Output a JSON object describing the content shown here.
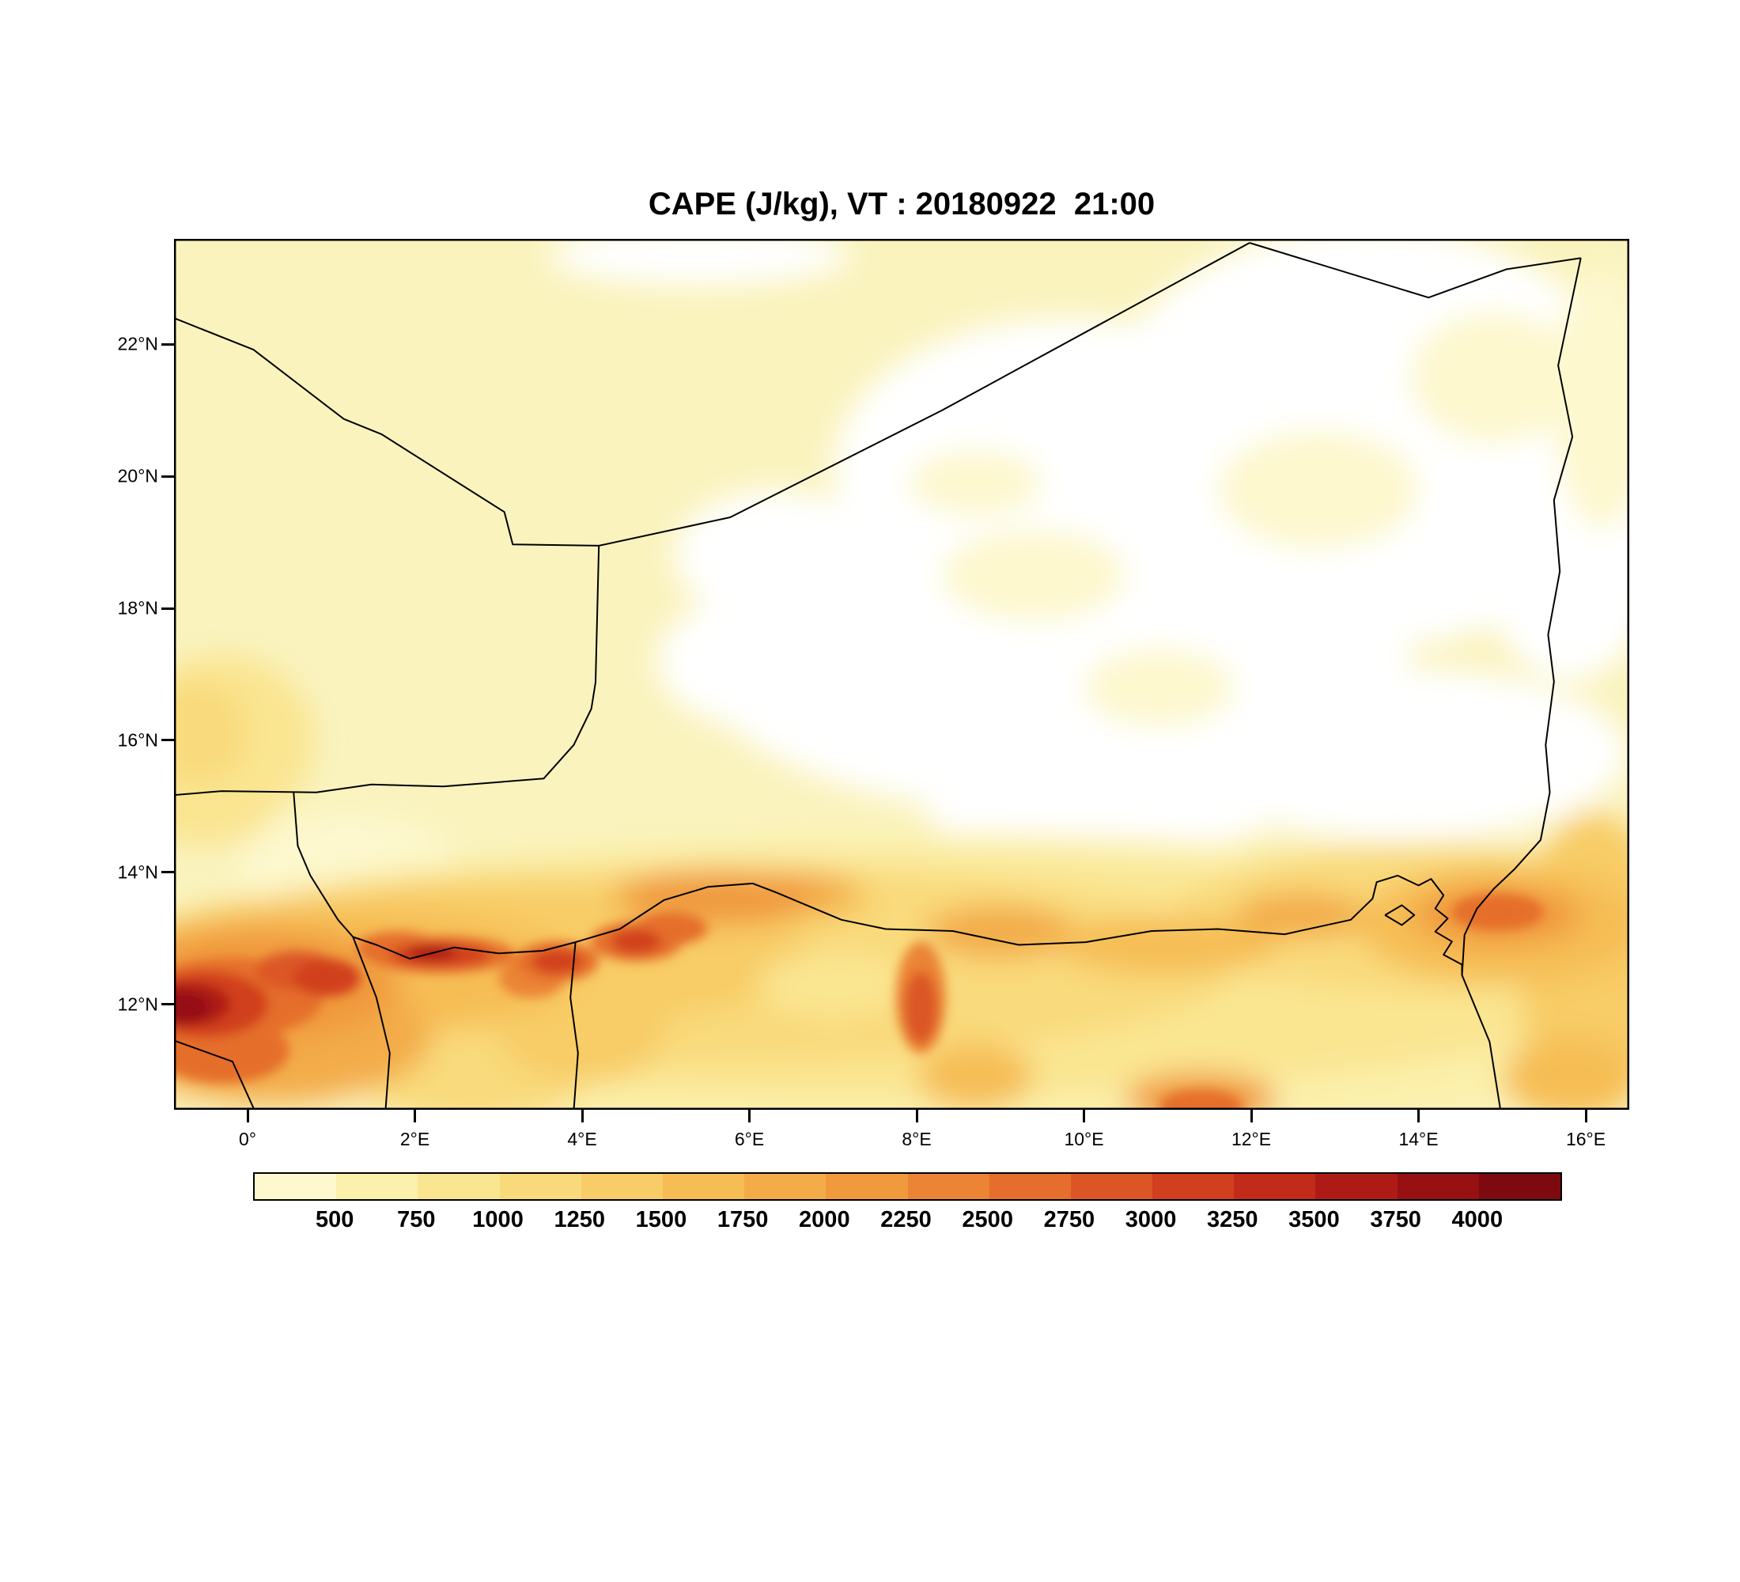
{
  "title": "CAPE (J/kg), VT : 20180922  21:00",
  "chart_data": {
    "type": "heatmap",
    "title": "CAPE (J/kg), VT : 20180922  21:00",
    "variable": "CAPE",
    "units": "J/kg",
    "valid_time_label": "VT : 20180922  21:00",
    "base_color": "#FAF3BE",
    "x_axis": {
      "kind": "longitude",
      "min": -0.88,
      "max": 16.52,
      "ticks": [
        {
          "value": 0,
          "label": "0°"
        },
        {
          "value": 2,
          "label": "2°E"
        },
        {
          "value": 4,
          "label": "4°E"
        },
        {
          "value": 6,
          "label": "6°E"
        },
        {
          "value": 8,
          "label": "8°E"
        },
        {
          "value": 10,
          "label": "10°E"
        },
        {
          "value": 12,
          "label": "12°E"
        },
        {
          "value": 14,
          "label": "14°E"
        },
        {
          "value": 16,
          "label": "16°E"
        }
      ]
    },
    "y_axis": {
      "kind": "latitude",
      "min": 10.4,
      "max": 23.6,
      "ticks": [
        {
          "value": 22,
          "label": "22°N"
        },
        {
          "value": 20,
          "label": "20°N"
        },
        {
          "value": 18,
          "label": "18°N"
        },
        {
          "value": 16,
          "label": "16°N"
        },
        {
          "value": 14,
          "label": "14°N"
        },
        {
          "value": 12,
          "label": "12°N"
        }
      ]
    },
    "colorbar": {
      "levels": [
        500,
        750,
        1000,
        1250,
        1500,
        1750,
        2000,
        2250,
        2500,
        2750,
        3000,
        3250,
        3500,
        3750,
        4000
      ],
      "colors": [
        "#FDF8CE",
        "#FBF0AC",
        "#FAE591",
        "#F9DA7B",
        "#F8CC66",
        "#F6BD55",
        "#F3AC48",
        "#F0993D",
        "#EB8434",
        "#E56E2C",
        "#DC5625",
        "#D13F1F",
        "#C22B1A",
        "#AE1B16",
        "#971012",
        "#7C0A0F"
      ],
      "missing_color": "#FFFFFF"
    },
    "features": [
      {
        "lon": 9.8,
        "lat": 20.1,
        "rx": 2.8,
        "ry": 2.3,
        "value": 0
      },
      {
        "lon": 13.4,
        "lat": 20.6,
        "rx": 3.3,
        "ry": 3.2,
        "value": 0
      },
      {
        "lon": 9.6,
        "lat": 17.3,
        "rx": 4.3,
        "ry": 2.4,
        "value": 0
      },
      {
        "lon": 13.8,
        "lat": 15.8,
        "rx": 2.7,
        "ry": 1.3,
        "value": 0
      },
      {
        "lon": 8.3,
        "lat": 16.1,
        "rx": 1.7,
        "ry": 1.0,
        "value": 0
      },
      {
        "lon": 6.3,
        "lat": 18.8,
        "rx": 1.2,
        "ry": 1.0,
        "value": 0
      },
      {
        "lon": 6.1,
        "lat": 17.2,
        "rx": 1.2,
        "ry": 1.0,
        "value": 0
      },
      {
        "lon": 5.4,
        "lat": 23.35,
        "rx": 1.8,
        "ry": 0.45,
        "value": 0
      },
      {
        "lon": 10.2,
        "lat": 14.9,
        "rx": 2.1,
        "ry": 0.6,
        "value": 0
      },
      {
        "lon": 15.8,
        "lat": 19.5,
        "rx": 1.2,
        "ry": 2.6,
        "value": 0
      },
      {
        "lon": 9.4,
        "lat": 18.5,
        "rx": 1.1,
        "ry": 0.7,
        "value": 250
      },
      {
        "lon": 12.8,
        "lat": 19.8,
        "rx": 1.2,
        "ry": 0.9,
        "value": 250
      },
      {
        "lon": 14.9,
        "lat": 21.5,
        "rx": 1.0,
        "ry": 1.0,
        "value": 250
      },
      {
        "lon": 10.9,
        "lat": 16.8,
        "rx": 0.9,
        "ry": 0.6,
        "value": 250
      },
      {
        "lon": 16.2,
        "lat": 21.2,
        "rx": 0.6,
        "ry": 2.0,
        "value": 250
      },
      {
        "lon": 8.7,
        "lat": 19.9,
        "rx": 0.8,
        "ry": 0.5,
        "value": 250
      },
      {
        "lon": 1.2,
        "lat": 14.1,
        "rx": 1.3,
        "ry": 0.8,
        "value": 250
      },
      {
        "lon": -0.3,
        "lat": 16.0,
        "rx": 1.1,
        "ry": 1.3,
        "value": 750
      },
      {
        "lon": -0.6,
        "lat": 16.1,
        "rx": 0.6,
        "ry": 0.8,
        "value": 1000
      },
      {
        "lon": -0.5,
        "lat": 14.9,
        "rx": 0.8,
        "ry": 0.5,
        "value": 750
      },
      {
        "lon": 8.0,
        "lat": 12.2,
        "rx": 9.8,
        "ry": 2.4,
        "value": 500
      },
      {
        "lon": 5.8,
        "lat": 10.5,
        "rx": 1.4,
        "ry": 0.5,
        "value": 500
      },
      {
        "lon": 7.6,
        "lat": 12.4,
        "rx": 9.2,
        "ry": 1.8,
        "value": 750
      },
      {
        "lon": 13.9,
        "lat": 13.3,
        "rx": 2.8,
        "ry": 1.1,
        "value": 1000
      },
      {
        "lon": 5.2,
        "lat": 12.6,
        "rx": 6.6,
        "ry": 1.5,
        "value": 1000
      },
      {
        "lon": 2.7,
        "lat": 11.2,
        "rx": 1.5,
        "ry": 1.0,
        "value": 1000
      },
      {
        "lon": 16.1,
        "lat": 12.6,
        "rx": 0.9,
        "ry": 2.3,
        "value": 1250
      },
      {
        "lon": 2.6,
        "lat": 12.7,
        "rx": 4.2,
        "ry": 1.1,
        "value": 1250
      },
      {
        "lon": 5.8,
        "lat": 13.6,
        "rx": 1.7,
        "ry": 0.5,
        "value": 1250
      },
      {
        "lon": 4.0,
        "lat": 11.6,
        "rx": 1.0,
        "ry": 0.8,
        "value": 1250
      },
      {
        "lon": 7.0,
        "lat": 12.3,
        "rx": 0.9,
        "ry": 0.5,
        "value": 750
      },
      {
        "lon": 15.0,
        "lat": 13.2,
        "rx": 1.7,
        "ry": 0.9,
        "value": 1500
      },
      {
        "lon": 1.2,
        "lat": 12.5,
        "rx": 2.7,
        "ry": 0.95,
        "value": 1500
      },
      {
        "lon": 14.2,
        "lat": 13.1,
        "rx": 0.9,
        "ry": 0.5,
        "value": 1500
      },
      {
        "lon": 11.0,
        "lat": 12.9,
        "rx": 1.3,
        "ry": 0.45,
        "value": 1500
      },
      {
        "lon": 8.7,
        "lat": 10.9,
        "rx": 0.7,
        "ry": 0.5,
        "value": 1500
      },
      {
        "lon": 15.8,
        "lat": 10.9,
        "rx": 0.8,
        "ry": 0.6,
        "value": 1500
      },
      {
        "lon": 9.0,
        "lat": 13.1,
        "rx": 0.9,
        "ry": 0.4,
        "value": 1750
      },
      {
        "lon": 6.6,
        "lat": 13.7,
        "rx": 0.7,
        "ry": 0.3,
        "value": 1750
      },
      {
        "lon": 12.6,
        "lat": 13.35,
        "rx": 0.8,
        "ry": 0.35,
        "value": 1750
      },
      {
        "lon": 0.3,
        "lat": 11.5,
        "rx": 1.9,
        "ry": 1.0,
        "value": 1750
      },
      {
        "lon": 5.6,
        "lat": 13.6,
        "rx": 1.2,
        "ry": 0.4,
        "value": 2000
      },
      {
        "lon": 0.1,
        "lat": 12.3,
        "rx": 1.7,
        "ry": 0.85,
        "value": 2000
      },
      {
        "lon": 14.95,
        "lat": 13.35,
        "rx": 1.0,
        "ry": 0.45,
        "value": 2000
      },
      {
        "lon": 11.4,
        "lat": 10.55,
        "rx": 0.9,
        "ry": 0.4,
        "value": 2000
      },
      {
        "lon": 8.05,
        "lat": 12.1,
        "rx": 0.3,
        "ry": 0.85,
        "value": 2250
      },
      {
        "lon": 3.4,
        "lat": 12.4,
        "rx": 0.4,
        "ry": 0.3,
        "value": 2250
      },
      {
        "lon": -0.2,
        "lat": 12.1,
        "rx": 1.1,
        "ry": 0.6,
        "value": 2500
      },
      {
        "lon": -0.3,
        "lat": 11.3,
        "rx": 0.8,
        "ry": 0.5,
        "value": 2500
      },
      {
        "lon": 2.3,
        "lat": 12.75,
        "rx": 0.9,
        "ry": 0.28,
        "value": 2500
      },
      {
        "lon": 1.8,
        "lat": 12.85,
        "rx": 0.5,
        "ry": 0.25,
        "value": 2500
      },
      {
        "lon": 3.7,
        "lat": 12.65,
        "rx": 0.5,
        "ry": 0.3,
        "value": 2500
      },
      {
        "lon": 4.65,
        "lat": 12.95,
        "rx": 0.55,
        "ry": 0.3,
        "value": 2500
      },
      {
        "lon": 5.05,
        "lat": 13.15,
        "rx": 0.45,
        "ry": 0.25,
        "value": 2500
      },
      {
        "lon": 14.95,
        "lat": 13.4,
        "rx": 0.55,
        "ry": 0.28,
        "value": 2500
      },
      {
        "lon": 11.4,
        "lat": 10.45,
        "rx": 0.5,
        "ry": 0.25,
        "value": 2500
      },
      {
        "lon": 8.05,
        "lat": 11.95,
        "rx": 0.2,
        "ry": 0.55,
        "value": 2750
      },
      {
        "lon": 0.6,
        "lat": 12.5,
        "rx": 0.5,
        "ry": 0.3,
        "value": 2750
      },
      {
        "lon": -0.5,
        "lat": 12.0,
        "rx": 0.75,
        "ry": 0.5,
        "value": 3000
      },
      {
        "lon": 0.95,
        "lat": 12.4,
        "rx": 0.4,
        "ry": 0.28,
        "value": 3000
      },
      {
        "lon": 2.3,
        "lat": 12.75,
        "rx": 0.6,
        "ry": 0.18,
        "value": 3000
      },
      {
        "lon": 3.7,
        "lat": 12.65,
        "rx": 0.3,
        "ry": 0.18,
        "value": 3000
      },
      {
        "lon": 4.65,
        "lat": 12.95,
        "rx": 0.3,
        "ry": 0.18,
        "value": 3000
      },
      {
        "lon": -0.7,
        "lat": 12.0,
        "rx": 0.5,
        "ry": 0.33,
        "value": 3500
      },
      {
        "lon": 2.2,
        "lat": 12.78,
        "rx": 0.3,
        "ry": 0.12,
        "value": 3500
      },
      {
        "lon": -0.78,
        "lat": 11.95,
        "rx": 0.33,
        "ry": 0.25,
        "value": 3800
      }
    ],
    "borders": [
      [
        [
          -0.88,
          22.4
        ],
        [
          0.07,
          21.92
        ],
        [
          1.15,
          20.87
        ],
        [
          1.6,
          20.64
        ],
        [
          3.07,
          19.46
        ],
        [
          3.17,
          18.97
        ],
        [
          4.2,
          18.95
        ]
      ],
      [
        [
          4.2,
          18.95
        ],
        [
          5.77,
          19.38
        ],
        [
          8.3,
          21.0
        ],
        [
          11.98,
          23.54
        ]
      ],
      [
        [
          11.98,
          23.54
        ],
        [
          14.12,
          22.71
        ],
        [
          15.05,
          23.14
        ],
        [
          15.94,
          23.31
        ]
      ],
      [
        [
          15.94,
          23.31
        ],
        [
          15.67,
          21.68
        ],
        [
          15.84,
          20.6
        ],
        [
          15.62,
          19.64
        ],
        [
          15.69,
          18.56
        ],
        [
          15.55,
          17.6
        ],
        [
          15.62,
          16.89
        ],
        [
          15.52,
          15.93
        ],
        [
          15.57,
          15.21
        ],
        [
          15.46,
          14.49
        ],
        [
          15.15,
          14.05
        ],
        [
          14.9,
          13.75
        ],
        [
          14.7,
          13.45
        ],
        [
          14.55,
          13.05
        ],
        [
          14.52,
          12.44
        ],
        [
          14.85,
          11.43
        ],
        [
          14.98,
          10.4
        ]
      ],
      [
        [
          4.2,
          18.95
        ],
        [
          4.16,
          16.88
        ],
        [
          4.11,
          16.48
        ],
        [
          3.9,
          15.93
        ],
        [
          3.54,
          15.42
        ],
        [
          2.34,
          15.3
        ],
        [
          1.48,
          15.33
        ],
        [
          0.82,
          15.21
        ],
        [
          -0.31,
          15.23
        ],
        [
          -0.88,
          15.17
        ]
      ],
      [
        [
          0.55,
          15.22
        ],
        [
          0.6,
          14.4
        ],
        [
          0.75,
          13.95
        ],
        [
          1.08,
          13.28
        ],
        [
          1.26,
          13.02
        ],
        [
          1.54,
          12.9
        ],
        [
          1.94,
          12.69
        ],
        [
          2.47,
          12.86
        ],
        [
          3.0,
          12.77
        ],
        [
          3.53,
          12.81
        ],
        [
          3.92,
          12.94
        ],
        [
          4.45,
          13.14
        ],
        [
          4.98,
          13.58
        ],
        [
          5.51,
          13.78
        ],
        [
          6.04,
          13.83
        ],
        [
          6.31,
          13.7
        ],
        [
          7.1,
          13.28
        ],
        [
          7.63,
          13.14
        ],
        [
          8.43,
          13.11
        ],
        [
          9.22,
          12.9
        ],
        [
          10.02,
          12.94
        ],
        [
          10.81,
          13.11
        ],
        [
          11.6,
          13.14
        ],
        [
          12.4,
          13.06
        ],
        [
          13.19,
          13.28
        ],
        [
          13.45,
          13.6
        ],
        [
          13.5,
          13.85
        ],
        [
          13.75,
          13.95
        ],
        [
          14.0,
          13.8
        ],
        [
          14.15,
          13.9
        ],
        [
          14.3,
          13.65
        ],
        [
          14.2,
          13.45
        ],
        [
          14.35,
          13.3
        ],
        [
          14.2,
          13.1
        ],
        [
          14.4,
          12.95
        ],
        [
          14.3,
          12.75
        ],
        [
          14.52,
          12.6
        ],
        [
          14.52,
          12.44
        ]
      ],
      [
        [
          3.92,
          12.94
        ],
        [
          3.86,
          12.1
        ],
        [
          3.95,
          11.26
        ],
        [
          3.9,
          10.4
        ]
      ],
      [
        [
          1.26,
          13.02
        ],
        [
          1.54,
          12.1
        ],
        [
          1.7,
          11.26
        ],
        [
          1.65,
          10.4
        ]
      ],
      [
        [
          -0.88,
          11.45
        ],
        [
          -0.18,
          11.13
        ],
        [
          0.08,
          10.4
        ]
      ],
      [
        [
          13.6,
          13.35
        ],
        [
          13.8,
          13.5
        ],
        [
          13.95,
          13.35
        ],
        [
          13.8,
          13.2
        ],
        [
          13.6,
          13.35
        ]
      ]
    ]
  }
}
